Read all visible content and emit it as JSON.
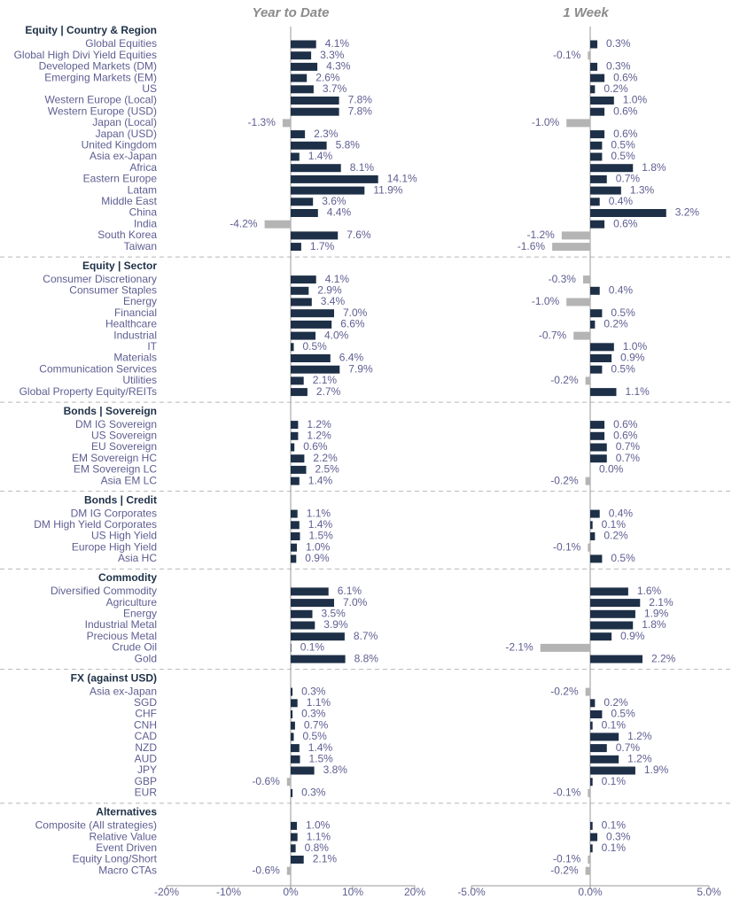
{
  "chart_data": {
    "type": "bar",
    "orientation": "horizontal",
    "sections": [
      {
        "title": "Equity | Country & Region",
        "categories": [
          "Global Equities",
          "Global High Divi Yield Equities",
          "Developed Markets (DM)",
          "Emerging Markets (EM)",
          "US",
          "Western Europe (Local)",
          "Western Europe (USD)",
          "Japan (Local)",
          "Japan (USD)",
          "United Kingdom",
          "Asia ex-Japan",
          "Africa",
          "Eastern Europe",
          "Latam",
          "Middle East",
          "China",
          "India",
          "South Korea",
          "Taiwan"
        ]
      },
      {
        "title": "Equity | Sector",
        "categories": [
          "Consumer Discretionary",
          "Consumer Staples",
          "Energy",
          "Financial",
          "Healthcare",
          "Industrial",
          "IT",
          "Materials",
          "Communication Services",
          "Utilities",
          "Global Property Equity/REITs"
        ]
      },
      {
        "title": "Bonds | Sovereign",
        "categories": [
          "DM IG Sovereign",
          "US Sovereign",
          "EU Sovereign",
          "EM Sovereign HC",
          "EM Sovereign LC",
          "Asia EM LC"
        ]
      },
      {
        "title": "Bonds | Credit",
        "categories": [
          "DM IG Corporates",
          "DM High Yield Corporates",
          "US High Yield",
          "Europe High Yield",
          "Asia HC"
        ]
      },
      {
        "title": "Commodity",
        "categories": [
          "Diversified Commodity",
          "Agriculture",
          "Energy",
          "Industrial Metal",
          "Precious Metal",
          "Crude Oil",
          "Gold"
        ]
      },
      {
        "title": "FX (against USD)",
        "categories": [
          "Asia ex-Japan",
          "SGD",
          "CHF",
          "CNH",
          "CAD",
          "NZD",
          "AUD",
          "JPY",
          "GBP",
          "EUR"
        ]
      },
      {
        "title": "Alternatives",
        "categories": [
          "Composite (All strategies)",
          "Relative Value",
          "Event Driven",
          "Equity Long/Short",
          "Macro CTAs"
        ]
      }
    ],
    "series": [
      {
        "name": "Year to Date",
        "color": "#1e3047",
        "negative_color": "#b4b4b4",
        "xlim": [
          -20,
          20
        ],
        "xticks": [
          {
            "value": -20,
            "label": "-20%"
          },
          {
            "value": -10,
            "label": "-10%"
          },
          {
            "value": 0,
            "label": "0%"
          },
          {
            "value": 10,
            "label": "10%"
          },
          {
            "value": 20,
            "label": "20%"
          }
        ],
        "values": [
          [
            4.1,
            3.3,
            4.3,
            2.6,
            3.7,
            7.8,
            7.8,
            -1.3,
            2.3,
            5.8,
            1.4,
            8.1,
            14.1,
            11.9,
            3.6,
            4.4,
            -4.2,
            7.6,
            1.7
          ],
          [
            4.1,
            2.9,
            3.4,
            7.0,
            6.6,
            4.0,
            0.5,
            6.4,
            7.9,
            2.1,
            2.7
          ],
          [
            1.2,
            1.2,
            0.6,
            2.2,
            2.5,
            1.4
          ],
          [
            1.1,
            1.4,
            1.5,
            1.0,
            0.9
          ],
          [
            6.1,
            7.0,
            3.5,
            3.9,
            8.7,
            0.1,
            8.8
          ],
          [
            0.3,
            1.1,
            0.3,
            0.7,
            0.5,
            1.4,
            1.5,
            3.8,
            -0.6,
            0.3
          ],
          [
            1.0,
            1.1,
            0.8,
            2.1,
            -0.6
          ]
        ],
        "value_labels": [
          [
            "4.1%",
            "3.3%",
            "4.3%",
            "2.6%",
            "3.7%",
            "7.8%",
            "7.8%",
            "-1.3%",
            "2.3%",
            "5.8%",
            "1.4%",
            "8.1%",
            "14.1%",
            "11.9%",
            "3.6%",
            "4.4%",
            "-4.2%",
            "7.6%",
            "1.7%"
          ],
          [
            "4.1%",
            "2.9%",
            "3.4%",
            "7.0%",
            "6.6%",
            "4.0%",
            "0.5%",
            "6.4%",
            "7.9%",
            "2.1%",
            "2.7%"
          ],
          [
            "1.2%",
            "1.2%",
            "0.6%",
            "2.2%",
            "2.5%",
            "1.4%"
          ],
          [
            "1.1%",
            "1.4%",
            "1.5%",
            "1.0%",
            "0.9%"
          ],
          [
            "6.1%",
            "7.0%",
            "3.5%",
            "3.9%",
            "8.7%",
            "0.1%",
            "8.8%"
          ],
          [
            "0.3%",
            "1.1%",
            "0.3%",
            "0.7%",
            "0.5%",
            "1.4%",
            "1.5%",
            "3.8%",
            "-0.6%",
            "0.3%"
          ],
          [
            "1.0%",
            "1.1%",
            "0.8%",
            "2.1%",
            "-0.6%"
          ]
        ]
      },
      {
        "name": "1 Week",
        "color": "#1e3047",
        "negative_color": "#b4b4b4",
        "xlim": [
          -5,
          5
        ],
        "xticks": [
          {
            "value": -5,
            "label": "-5.0%"
          },
          {
            "value": 0,
            "label": "0.0%"
          },
          {
            "value": 5,
            "label": "5.0%"
          }
        ],
        "values": [
          [
            0.3,
            -0.1,
            0.3,
            0.6,
            0.2,
            1.0,
            0.6,
            -1.0,
            0.6,
            0.5,
            0.5,
            1.8,
            0.7,
            1.3,
            0.4,
            3.2,
            0.6,
            -1.2,
            -1.6
          ],
          [
            -0.3,
            0.4,
            -1.0,
            0.5,
            0.2,
            -0.7,
            1.0,
            0.9,
            0.5,
            -0.2,
            1.1
          ],
          [
            0.6,
            0.6,
            0.7,
            0.7,
            0.0,
            -0.2
          ],
          [
            0.4,
            0.1,
            0.2,
            -0.1,
            0.5
          ],
          [
            1.6,
            2.1,
            1.9,
            1.8,
            0.9,
            -2.1,
            2.2
          ],
          [
            -0.2,
            0.2,
            0.5,
            0.1,
            1.2,
            0.7,
            1.2,
            1.9,
            0.1,
            -0.1
          ],
          [
            0.1,
            0.3,
            0.1,
            -0.1,
            -0.2
          ]
        ],
        "value_labels": [
          [
            "0.3%",
            "-0.1%",
            "0.3%",
            "0.6%",
            "0.2%",
            "1.0%",
            "0.6%",
            "-1.0%",
            "0.6%",
            "0.5%",
            "0.5%",
            "1.8%",
            "0.7%",
            "1.3%",
            "0.4%",
            "3.2%",
            "0.6%",
            "-1.2%",
            "-1.6%"
          ],
          [
            "-0.3%",
            "0.4%",
            "-1.0%",
            "0.5%",
            "0.2%",
            "-0.7%",
            "1.0%",
            "0.9%",
            "0.5%",
            "-0.2%",
            "1.1%"
          ],
          [
            "0.6%",
            "0.6%",
            "0.7%",
            "0.7%",
            "0.0%",
            "-0.2%"
          ],
          [
            "0.4%",
            "0.1%",
            "0.2%",
            "-0.1%",
            "0.5%"
          ],
          [
            "1.6%",
            "2.1%",
            "1.9%",
            "1.8%",
            "0.9%",
            "-2.1%",
            "2.2%"
          ],
          [
            "-0.2%",
            "0.2%",
            "0.5%",
            "0.1%",
            "1.2%",
            "0.7%",
            "1.2%",
            "1.9%",
            "0.1%",
            "-0.1%"
          ],
          [
            "0.1%",
            "0.3%",
            "0.1%",
            "-0.1%",
            "-0.2%"
          ]
        ]
      }
    ]
  }
}
